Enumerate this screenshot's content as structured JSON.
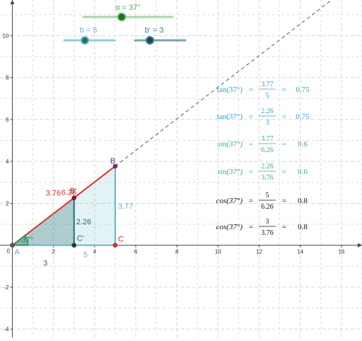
{
  "sliders": [
    {
      "id": "alpha",
      "label": "α = 37°",
      "color": "#4caf50",
      "value": 37
    },
    {
      "id": "b",
      "label": "b = 5",
      "color": "#5fb7c9",
      "value": 5
    },
    {
      "id": "bprime",
      "label": "b' = 3",
      "color": "#3d7f8c",
      "value": 3
    }
  ],
  "axes": {
    "x_ticks": [
      "2",
      "4",
      "6",
      "8",
      "10",
      "12",
      "14",
      "16"
    ],
    "y_ticks": [
      "10",
      "8",
      "6",
      "4",
      "2",
      "-2",
      "-4"
    ],
    "origin_label": "0",
    "xlim": [
      -0.6,
      17
    ],
    "ylim": [
      -4.4,
      11.7
    ],
    "grid": true
  },
  "points": {
    "A": {
      "label": "A",
      "x": 0,
      "y": 0
    },
    "B": {
      "label": "B",
      "x": 5,
      "y": 3.77
    },
    "C": {
      "label": "C",
      "x": 5,
      "y": 0
    },
    "Bp": {
      "label": "B'",
      "x": 3,
      "y": 2.26
    },
    "Cp": {
      "label": "C'",
      "x": 3,
      "y": 0
    }
  },
  "segment_labels": {
    "hyp_big": "6.26",
    "hyp_small": "3.76",
    "opp_big": "3.77",
    "opp_small": "2.26",
    "adj_big": "5",
    "adj_small": "3",
    "angle": "37°"
  },
  "equations": [
    {
      "fn": "tan(37°)",
      "num": "3.77",
      "den": "5",
      "val": "0.75",
      "color": "#2f9fd8"
    },
    {
      "fn": "tan(37°)",
      "num": "2.26",
      "den": "3",
      "val": "0.75",
      "color": "#2f9fd8"
    },
    {
      "fn": "sin(37°)",
      "num": "3.77",
      "den": "6.26",
      "val": "0.6",
      "color": "#3cb371"
    },
    {
      "fn": "sin(37°)",
      "num": "2.26",
      "den": "3.76",
      "val": "0.6",
      "color": "#3cb371"
    },
    {
      "fn": "cos(37°)",
      "num": "5",
      "den": "6.26",
      "val": "0.8",
      "color": "#111111"
    },
    {
      "fn": "cos(37°)",
      "num": "3",
      "den": "3.76",
      "val": "0.8",
      "color": "#111111"
    }
  ],
  "colors": {
    "hypotenuse": "#e0302a",
    "big_triangle": "#5fb7c9",
    "small_triangle": "#2a6b6b",
    "angle": "#2e8b57",
    "grid": "#d8d8d8"
  }
}
